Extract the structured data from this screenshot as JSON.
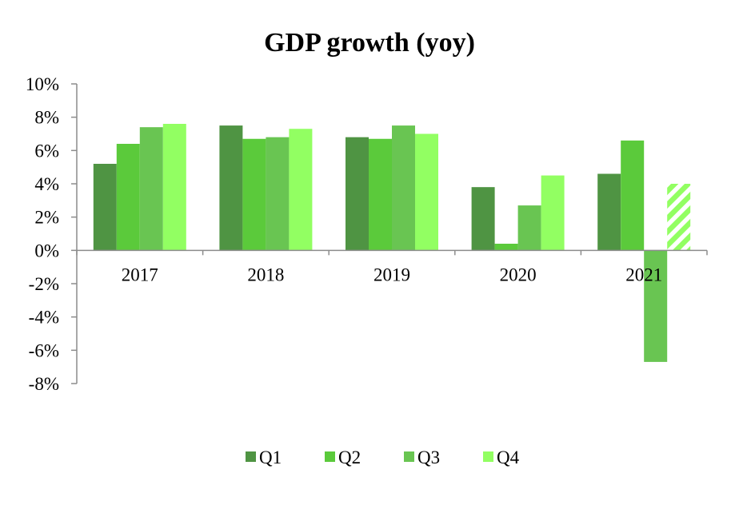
{
  "chart_data": {
    "type": "bar",
    "title": "GDP growth (yoy)",
    "xlabel": "",
    "ylabel": "",
    "ylim": [
      -8,
      10
    ],
    "yticks": [
      "10%",
      "8%",
      "6%",
      "4%",
      "2%",
      "0%",
      "-2%",
      "-4%",
      "-6%",
      "-8%"
    ],
    "ytick_values": [
      10,
      8,
      6,
      4,
      2,
      0,
      -2,
      -4,
      -6,
      -8
    ],
    "categories": [
      "2017",
      "2018",
      "2019",
      "2020",
      "2021"
    ],
    "series": [
      {
        "name": "Q1",
        "color": "#4f9443",
        "values": [
          5.2,
          7.5,
          6.8,
          3.8,
          4.6
        ]
      },
      {
        "name": "Q2",
        "color": "#5bca3b",
        "values": [
          6.4,
          6.7,
          6.7,
          0.4,
          6.6
        ]
      },
      {
        "name": "Q3",
        "color": "#69c552",
        "values": [
          7.4,
          6.8,
          7.5,
          2.7,
          -6.7
        ]
      },
      {
        "name": "Q4",
        "color": "#92ff62",
        "values": [
          7.6,
          7.3,
          7.0,
          4.5,
          4.0
        ]
      }
    ],
    "forecast": {
      "series": "Q4",
      "category": "2021",
      "pattern": "hatched"
    },
    "legend": "bottom-center"
  }
}
